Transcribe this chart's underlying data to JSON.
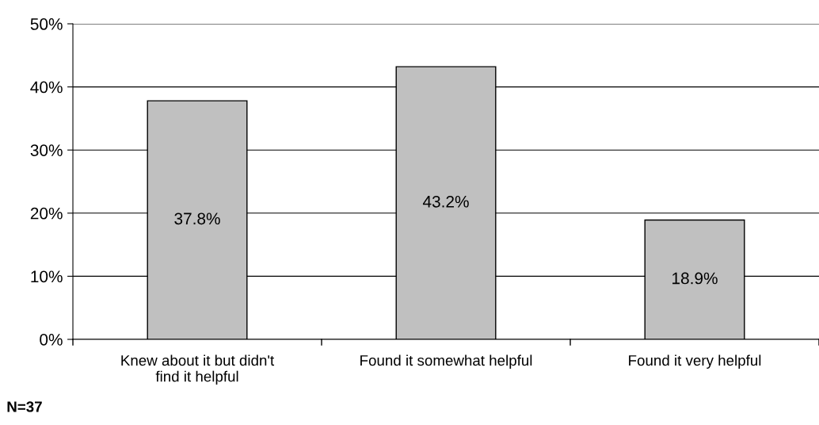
{
  "chart_data": {
    "type": "bar",
    "categories": [
      "Knew about it but didn't\nfind it helpful",
      "Found it somewhat helpful",
      "Found it very helpful"
    ],
    "values": [
      37.8,
      43.2,
      18.9
    ],
    "value_labels": [
      "37.8%",
      "43.2%",
      "18.9%"
    ],
    "color": "#c0c0c0",
    "ylim": [
      0,
      50
    ],
    "yticks": [
      {
        "value": 0,
        "label": "0%"
      },
      {
        "value": 10,
        "label": "10%"
      },
      {
        "value": 20,
        "label": "20%"
      },
      {
        "value": 30,
        "label": "30%"
      },
      {
        "value": 40,
        "label": "40%"
      },
      {
        "value": 50,
        "label": "50%"
      }
    ],
    "grid": "y",
    "legend": false,
    "annotations": [
      "N=37"
    ]
  }
}
